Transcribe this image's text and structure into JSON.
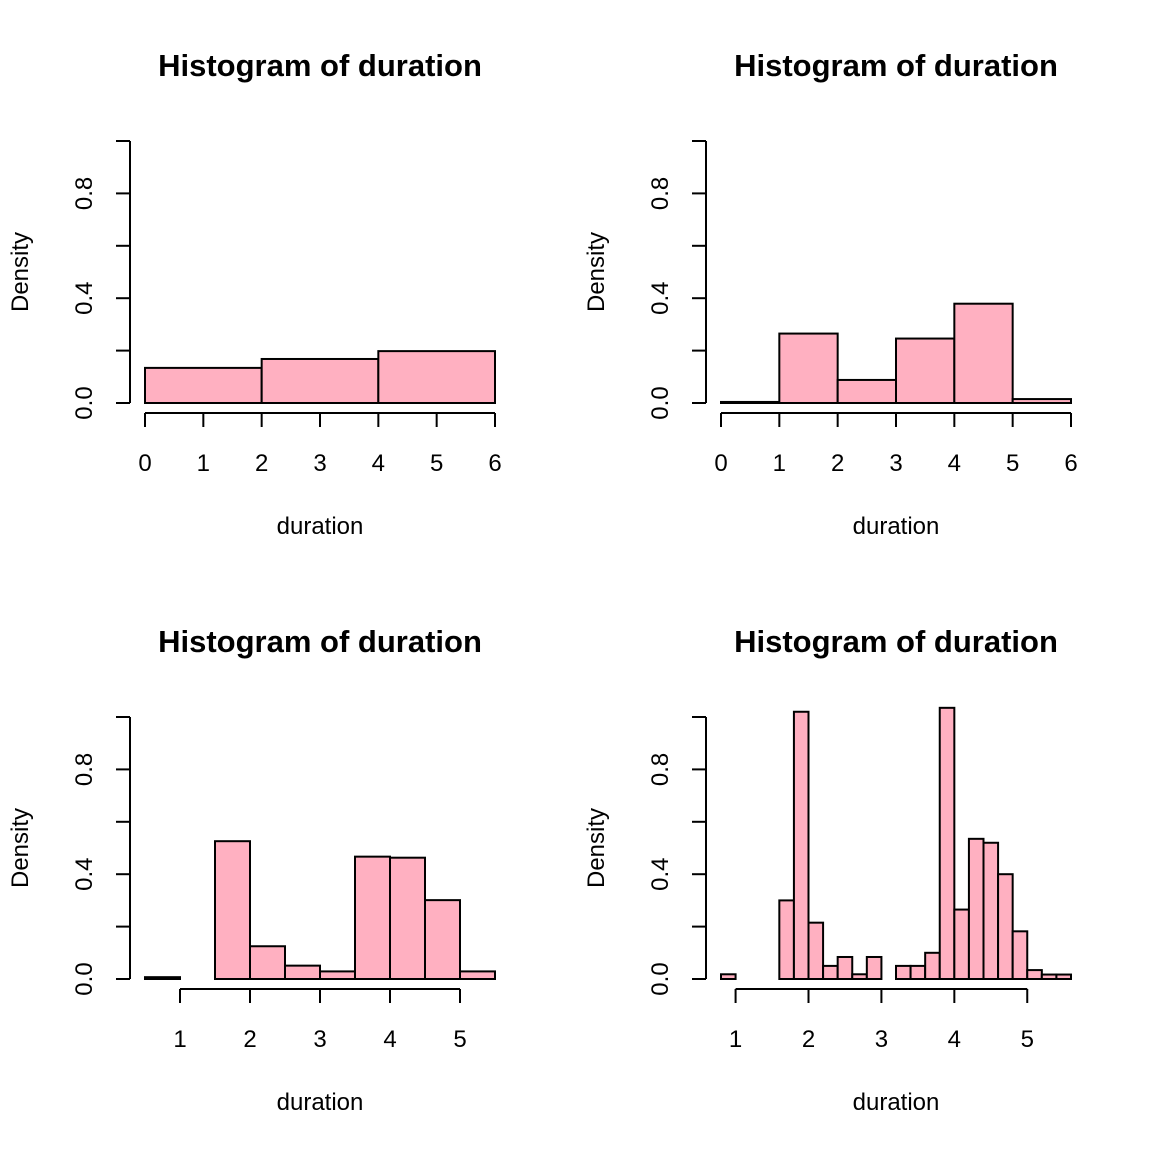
{
  "bar_color": "#FFB0C1",
  "chart_data": [
    {
      "type": "bar",
      "subtype": "histogram",
      "title": "Histogram of duration",
      "xlabel": "duration",
      "ylabel": "Density",
      "xlim": [
        0,
        6
      ],
      "ylim": [
        0,
        1.0
      ],
      "xticks": [
        "0",
        "1",
        "2",
        "3",
        "4",
        "5",
        "6"
      ],
      "xtick_values": [
        0,
        1,
        2,
        3,
        4,
        5,
        6
      ],
      "yticks": [
        "0.0",
        "0.4",
        "0.8"
      ],
      "ytick_values": [
        0,
        0.4,
        0.8
      ],
      "yminor_ticks": [
        0.2,
        0.6,
        1.0
      ],
      "breaks": [
        0,
        2,
        4,
        6
      ],
      "values": [
        0.134,
        0.168,
        0.198
      ],
      "grid": false
    },
    {
      "type": "bar",
      "subtype": "histogram",
      "title": "Histogram of duration",
      "xlabel": "duration",
      "ylabel": "Density",
      "xlim": [
        0,
        6
      ],
      "ylim": [
        0,
        1.0
      ],
      "xticks": [
        "0",
        "1",
        "2",
        "3",
        "4",
        "5",
        "6"
      ],
      "xtick_values": [
        0,
        1,
        2,
        3,
        4,
        5,
        6
      ],
      "yticks": [
        "0.0",
        "0.4",
        "0.8"
      ],
      "ytick_values": [
        0,
        0.4,
        0.8
      ],
      "yminor_ticks": [
        0.2,
        0.6,
        1.0
      ],
      "breaks": [
        0,
        1,
        2,
        3,
        4,
        5,
        6
      ],
      "values": [
        0.004,
        0.265,
        0.088,
        0.246,
        0.379,
        0.015
      ],
      "grid": false
    },
    {
      "type": "bar",
      "subtype": "histogram",
      "title": "Histogram of duration",
      "xlabel": "duration",
      "ylabel": "Density",
      "xlim": [
        0.5,
        5.5
      ],
      "ylim": [
        0,
        1.0
      ],
      "xticks": [
        "1",
        "2",
        "3",
        "4",
        "5"
      ],
      "xtick_values": [
        1,
        2,
        3,
        4,
        5
      ],
      "yticks": [
        "0.0",
        "0.4",
        "0.8"
      ],
      "ytick_values": [
        0,
        0.4,
        0.8
      ],
      "yminor_ticks": [
        0.2,
        0.6,
        1.0
      ],
      "breaks": [
        0.5,
        1.0,
        1.5,
        2.0,
        2.5,
        3.0,
        3.5,
        4.0,
        4.5,
        5.0,
        5.5
      ],
      "values": [
        0.007,
        0.0,
        0.526,
        0.125,
        0.051,
        0.029,
        0.467,
        0.463,
        0.301,
        0.029
      ],
      "grid": false
    },
    {
      "type": "bar",
      "subtype": "histogram",
      "title": "Histogram of duration",
      "xlabel": "duration",
      "ylabel": "Density",
      "xlim": [
        0.8,
        5.6
      ],
      "ylim": [
        0,
        1.0
      ],
      "xticks": [
        "1",
        "2",
        "3",
        "4",
        "5"
      ],
      "xtick_values": [
        1,
        2,
        3,
        4,
        5
      ],
      "yticks": [
        "0.0",
        "0.4",
        "0.8"
      ],
      "ytick_values": [
        0,
        0.4,
        0.8
      ],
      "yminor_ticks": [
        0.2,
        0.6,
        1.0
      ],
      "breaks": [
        0.8,
        1.0,
        1.2,
        1.4,
        1.6,
        1.8,
        2.0,
        2.2,
        2.4,
        2.6,
        2.8,
        3.0,
        3.2,
        3.4,
        3.6,
        3.8,
        4.0,
        4.2,
        4.4,
        4.6,
        4.8,
        5.0,
        5.2,
        5.4,
        5.6
      ],
      "values": [
        0.018,
        0.0,
        0.0,
        0.0,
        0.3,
        1.02,
        0.215,
        0.05,
        0.084,
        0.018,
        0.084,
        0.0,
        0.05,
        0.05,
        0.1,
        1.035,
        0.265,
        0.535,
        0.52,
        0.4,
        0.182,
        0.034,
        0.017,
        0.017
      ],
      "grid": false
    }
  ]
}
